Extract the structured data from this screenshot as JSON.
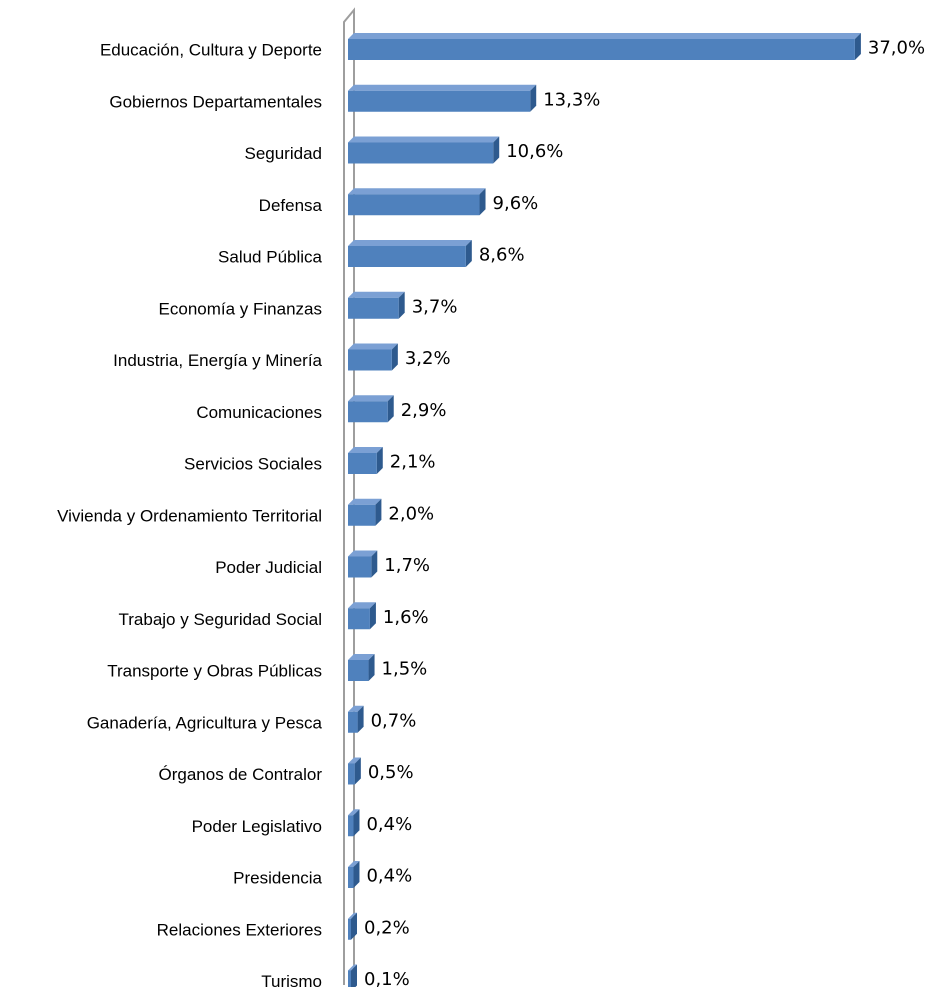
{
  "chart_data": {
    "type": "bar",
    "orientation": "horizontal",
    "style": "3d",
    "categories": [
      "Educación, Cultura y Deporte",
      "Gobiernos Departamentales",
      "Seguridad",
      "Defensa",
      "Salud Pública",
      "Economía y Finanzas",
      "Industria, Energía y Minería",
      "Comunicaciones",
      "Servicios Sociales",
      "Vivienda y Ordenamiento Territorial",
      "Poder Judicial",
      "Trabajo y Seguridad Social",
      "Transporte y Obras Públicas",
      "Ganadería, Agricultura y Pesca",
      "Órganos de Contralor",
      "Poder Legislativo",
      "Presidencia",
      "Relaciones Exteriores",
      "Turismo"
    ],
    "values": [
      37.0,
      13.3,
      10.6,
      9.6,
      8.6,
      3.7,
      3.2,
      2.9,
      2.1,
      2.0,
      1.7,
      1.6,
      1.5,
      0.7,
      0.5,
      0.4,
      0.4,
      0.2,
      0.1
    ],
    "data_labels": [
      "37,0%",
      "13,3%",
      "10,6%",
      "9,6%",
      "8,6%",
      "3,7%",
      "3,2%",
      "2,9%",
      "2,1%",
      "2,0%",
      "1,7%",
      "1,6%",
      "1,5%",
      "0,7%",
      "0,5%",
      "0,4%",
      "0,4%",
      "0,2%",
      "0,1%"
    ],
    "xlim": [
      0,
      37.0
    ],
    "grid": false,
    "legend": "none",
    "colors": {
      "bar_front": "#4f81bd",
      "bar_top": "#7ba0d4",
      "bar_side": "#2e5a8e",
      "wall": "#9e9e9e"
    }
  }
}
